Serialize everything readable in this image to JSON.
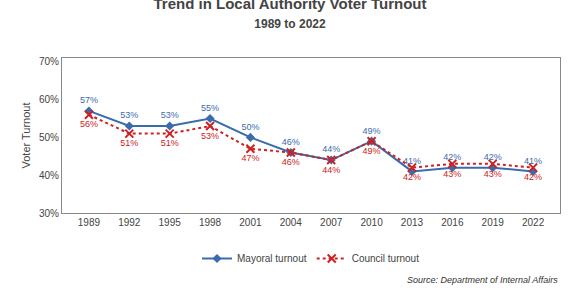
{
  "chart_data": {
    "type": "line",
    "title": "Trend in Local Authority Voter Turnout",
    "subtitle": "1989 to 2022",
    "y_label": "Voter Turnout",
    "source": "Source: Department of Internal Affairs",
    "x": [
      1989,
      1992,
      1995,
      1998,
      2001,
      2004,
      2007,
      2010,
      2013,
      2016,
      2019,
      2022
    ],
    "series": [
      {
        "name": "Mayoral turnout",
        "color": "#3A6BAD",
        "marker": "diamond",
        "line_style": "solid",
        "values": [
          57,
          53,
          53,
          55,
          50,
          46,
          44,
          49,
          41,
          42,
          42,
          41
        ],
        "value_labels": [
          "57%",
          "53%",
          "53%",
          "55%",
          "50%",
          "46%",
          "44%",
          "49%",
          "41%",
          "42%",
          "42%",
          "41%"
        ]
      },
      {
        "name": "Council turnout",
        "color": "#CC2222",
        "marker": "x",
        "line_style": "dotted",
        "values": [
          56,
          51,
          51,
          53,
          47,
          46,
          44,
          49,
          42,
          43,
          43,
          42
        ],
        "value_labels": [
          "56%",
          "51%",
          "51%",
          "53%",
          "47%",
          "46%",
          "44%",
          "49%",
          "42%",
          "43%",
          "43%",
          "42%"
        ]
      }
    ],
    "xlim": [
      1987,
      2024
    ],
    "xticks": [
      1989,
      1992,
      1995,
      1998,
      2001,
      2004,
      2007,
      2010,
      2013,
      2016,
      2019,
      2022
    ],
    "ylim": [
      30,
      71
    ],
    "yticks": [
      {
        "value": 30,
        "label": "30%"
      },
      {
        "value": 40,
        "label": "40%"
      },
      {
        "value": 50,
        "label": "50%"
      },
      {
        "value": 60,
        "label": "60%"
      },
      {
        "value": 70,
        "label": "70%"
      }
    ],
    "data_labels": true,
    "grid": false,
    "legend": "bottom"
  }
}
